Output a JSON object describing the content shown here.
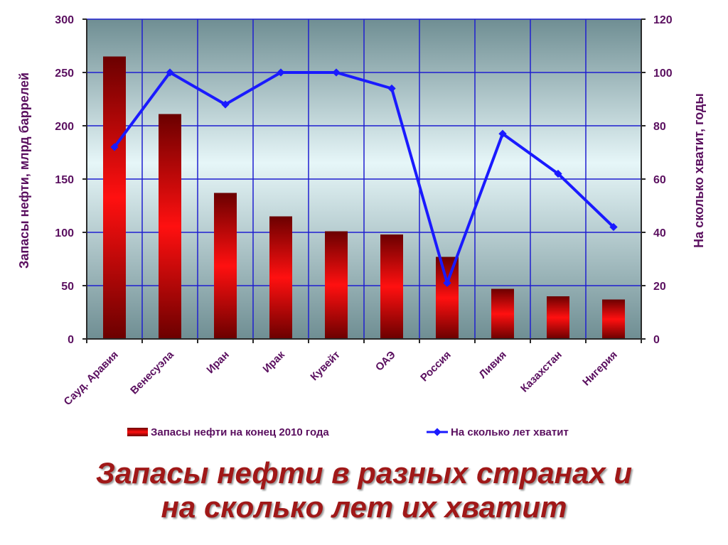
{
  "slide": {
    "title_line1": "Запасы нефти в разных странах и",
    "title_line2": "на сколько лет их хватит"
  },
  "chart_data": {
    "type": "bar",
    "categories": [
      "Сауд. Аравия",
      "Венесуэла",
      "Иран",
      "Ирак",
      "Кувейт",
      "ОАЭ",
      "Россия",
      "Ливия",
      "Казахстан",
      "Нигерия"
    ],
    "series": [
      {
        "name": "Запасы нефти на конец 2010 года",
        "type": "bar",
        "axis": "left",
        "values": [
          265,
          211,
          137,
          115,
          101,
          98,
          77,
          47,
          40,
          37
        ],
        "color": "#e00000"
      },
      {
        "name": "На сколько лет хватит",
        "type": "line",
        "axis": "right",
        "values": [
          72,
          100,
          88,
          100,
          100,
          94,
          21,
          77,
          62,
          42
        ],
        "color": "#1a1aff"
      }
    ],
    "ylabel": "Запасы нефти, млрд баррелей",
    "y2label": "На сколько хватит, годы",
    "ylim": [
      0,
      300
    ],
    "y2lim": [
      0,
      120
    ],
    "yticks": [
      "0",
      "50",
      "100",
      "150",
      "200",
      "250",
      "300"
    ],
    "y2ticks": [
      "0",
      "20",
      "40",
      "60",
      "80",
      "100",
      "120"
    ],
    "grid": true,
    "legend_position": "bottom"
  }
}
